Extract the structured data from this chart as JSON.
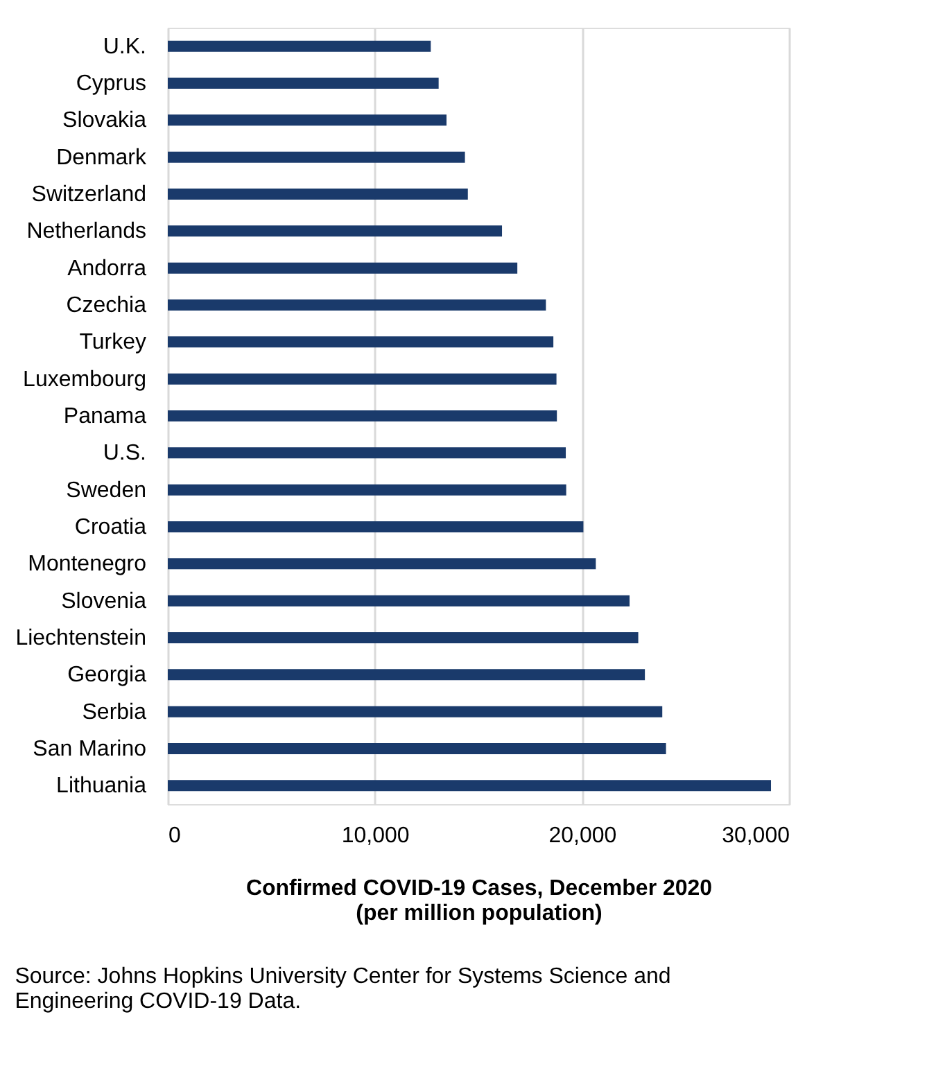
{
  "chart_data": {
    "type": "bar",
    "orientation": "horizontal",
    "categories": [
      "U.K.",
      "Cyprus",
      "Slovakia",
      "Denmark",
      "Switzerland",
      "Netherlands",
      "Andorra",
      "Czechia",
      "Turkey",
      "Luxembourg",
      "Panama",
      "U.S.",
      "Sweden",
      "Croatia",
      "Montenegro",
      "Slovenia",
      "Liechtenstein",
      "Georgia",
      "Serbia",
      "San Marino",
      "Lithuania"
    ],
    "values": [
      12700,
      13080,
      13460,
      14350,
      14490,
      16140,
      16880,
      18260,
      18620,
      18770,
      18790,
      19220,
      19240,
      20070,
      20670,
      22300,
      22720,
      23040,
      23880,
      24060,
      29130
    ],
    "color": "#1a3a6b",
    "xlim": [
      0,
      30000
    ],
    "xticks": [
      {
        "value": 0,
        "label": "0"
      },
      {
        "value": 10000,
        "label": "10,000"
      },
      {
        "value": 20000,
        "label": "20,000"
      },
      {
        "value": 30000,
        "label": "30,000"
      }
    ],
    "xlabel": "Confirmed COVID-19 Cases, December 2020\n(per million population)",
    "grid": "x",
    "annotations": [
      "Source: Johns Hopkins University Center for Systems Science and Engineering COVID-19 Data."
    ]
  }
}
